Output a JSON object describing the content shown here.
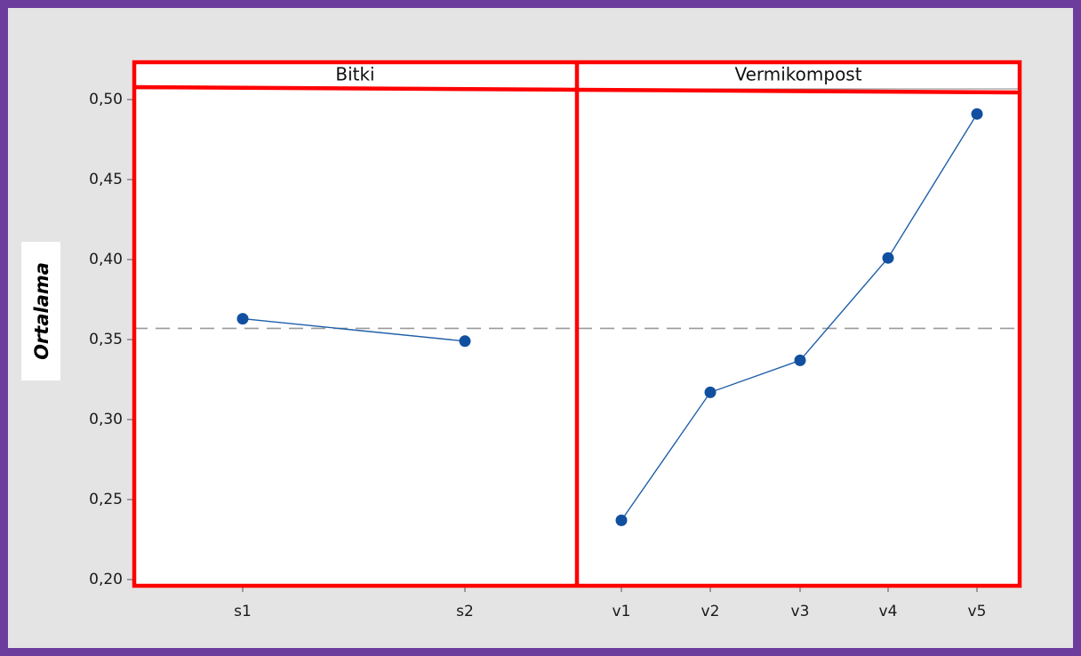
{
  "chart_data": {
    "type": "line",
    "ylabel": "Ortalama",
    "ylim": [
      0.2,
      0.52
    ],
    "yticks": [
      0.2,
      0.25,
      0.3,
      0.35,
      0.4,
      0.45,
      0.5
    ],
    "ytick_labels": [
      "0,20",
      "0,25",
      "0,30",
      "0,35",
      "0,40",
      "0,45",
      "0,50"
    ],
    "reference_line": 0.357,
    "panels": [
      {
        "title": "Bitki",
        "categories": [
          "s1",
          "s2"
        ],
        "values": [
          0.363,
          0.349
        ]
      },
      {
        "title": "Vermikompost",
        "categories": [
          "v1",
          "v2",
          "v3",
          "v4",
          "v5"
        ],
        "values": [
          0.237,
          0.317,
          0.337,
          0.401,
          0.491
        ]
      }
    ]
  },
  "colors": {
    "frame": "#6d3d9e",
    "background": "#e4e4e4",
    "highlight": "#ff0000",
    "series": "#1f5fa8",
    "marker": "#1150a0",
    "reference": "#9a9a9a"
  }
}
